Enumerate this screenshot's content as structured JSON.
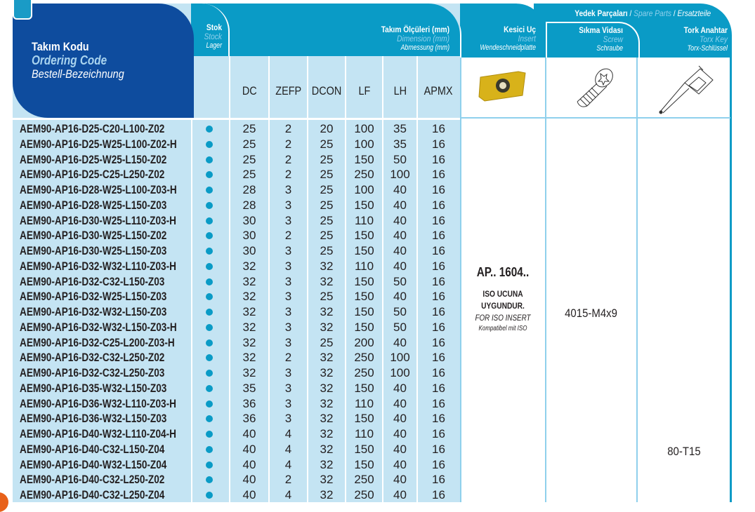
{
  "header": {
    "code": {
      "tr": "Takım Kodu",
      "en": "Ordering Code",
      "de": "Bestell-Bezeichnung"
    },
    "stock": {
      "tr": "Stok",
      "en": "Stock",
      "de": "Lager"
    },
    "dims": {
      "tr": "Takım Ölçüleri (mm)",
      "en": "Dimension (mm)",
      "de": "Abmessung (mm)"
    },
    "insert": {
      "tr": "Kesici Uç",
      "en": "Insert",
      "de": "Wendeschneidplatte"
    },
    "spare": {
      "tr": "Yedek Parçaları",
      "sep": " / ",
      "en": "Spare Parts",
      "de": "Ersatzteile"
    },
    "screw": {
      "tr": "Sıkma Vidası",
      "en": "Screw",
      "de": "Schraube"
    },
    "key": {
      "tr": "Tork Anahtar",
      "en": "Torx Key",
      "de": "Torx-Schlüssel"
    },
    "columns": [
      "DC",
      "ZEFP",
      "DCON",
      "LF",
      "LH",
      "APMX"
    ]
  },
  "rows": [
    [
      "AEM90-AP16-D25-C20-L100-Z02",
      "25",
      "2",
      "20",
      "100",
      "35",
      "16"
    ],
    [
      "AEM90-AP16-D25-W25-L100-Z02-H",
      "25",
      "2",
      "25",
      "100",
      "35",
      "16"
    ],
    [
      "AEM90-AP16-D25-W25-L150-Z02",
      "25",
      "2",
      "25",
      "150",
      "50",
      "16"
    ],
    [
      "AEM90-AP16-D25-C25-L250-Z02",
      "25",
      "2",
      "25",
      "250",
      "100",
      "16"
    ],
    [
      "AEM90-AP16-D28-W25-L100-Z03-H",
      "28",
      "3",
      "25",
      "100",
      "40",
      "16"
    ],
    [
      "AEM90-AP16-D28-W25-L150-Z03",
      "28",
      "3",
      "25",
      "150",
      "40",
      "16"
    ],
    [
      "AEM90-AP16-D30-W25-L110-Z03-H",
      "30",
      "3",
      "25",
      "110",
      "40",
      "16"
    ],
    [
      "AEM90-AP16-D30-W25-L150-Z02",
      "30",
      "2",
      "25",
      "150",
      "40",
      "16"
    ],
    [
      "AEM90-AP16-D30-W25-L150-Z03",
      "30",
      "3",
      "25",
      "150",
      "40",
      "16"
    ],
    [
      "AEM90-AP16-D32-W32-L110-Z03-H",
      "32",
      "3",
      "32",
      "110",
      "40",
      "16"
    ],
    [
      "AEM90-AP16-D32-C32-L150-Z03",
      "32",
      "3",
      "32",
      "150",
      "50",
      "16"
    ],
    [
      "AEM90-AP16-D32-W25-L150-Z03",
      "32",
      "3",
      "25",
      "150",
      "40",
      "16"
    ],
    [
      "AEM90-AP16-D32-W32-L150-Z03",
      "32",
      "3",
      "32",
      "150",
      "50",
      "16"
    ],
    [
      "AEM90-AP16-D32-W32-L150-Z03-H",
      "32",
      "3",
      "32",
      "150",
      "50",
      "16"
    ],
    [
      "AEM90-AP16-D32-C25-L200-Z03-H",
      "32",
      "3",
      "25",
      "200",
      "40",
      "16"
    ],
    [
      "AEM90-AP16-D32-C32-L250-Z02",
      "32",
      "2",
      "32",
      "250",
      "100",
      "16"
    ],
    [
      "AEM90-AP16-D32-C32-L250-Z03",
      "32",
      "3",
      "32",
      "250",
      "100",
      "16"
    ],
    [
      "AEM90-AP16-D35-W32-L150-Z03",
      "35",
      "3",
      "32",
      "150",
      "40",
      "16"
    ],
    [
      "AEM90-AP16-D36-W32-L110-Z03-H",
      "36",
      "3",
      "32",
      "110",
      "40",
      "16"
    ],
    [
      "AEM90-AP16-D36-W32-L150-Z03",
      "36",
      "3",
      "32",
      "150",
      "40",
      "16"
    ],
    [
      "AEM90-AP16-D40-W32-L110-Z04-H",
      "40",
      "4",
      "32",
      "110",
      "40",
      "16"
    ],
    [
      "AEM90-AP16-D40-C32-L150-Z04",
      "40",
      "4",
      "32",
      "150",
      "40",
      "16"
    ],
    [
      "AEM90-AP16-D40-W32-L150-Z04",
      "40",
      "4",
      "32",
      "150",
      "40",
      "16"
    ],
    [
      "AEM90-AP16-D40-C32-L250-Z02",
      "40",
      "2",
      "32",
      "250",
      "40",
      "16"
    ],
    [
      "AEM90-AP16-D40-C32-L250-Z04",
      "40",
      "4",
      "32",
      "250",
      "40",
      "16"
    ]
  ],
  "insert_info": {
    "code": "AP.. 1604..",
    "tr1": "ISO UCUNA",
    "tr2": "UYGUNDUR.",
    "en": "FOR ISO INSERT",
    "de": "Kompatibel mit ISO"
  },
  "screw_value": "4015-M4x9",
  "key_value": "80-T15",
  "stock_icon": "filled-dot",
  "colors": {
    "header": "#0a9bc6",
    "code_panel": "#0e4c9e",
    "row_bg": "#c4e4f3",
    "stock_dot": "#0a9bc6"
  }
}
